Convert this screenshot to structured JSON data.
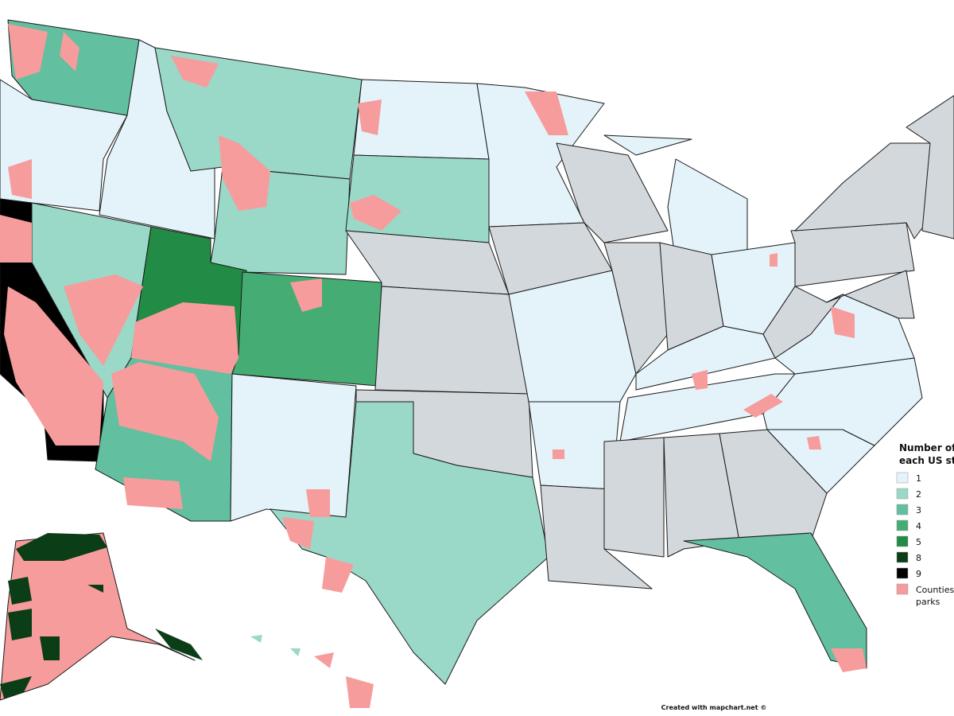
{
  "legend": {
    "title_lines": [
      "Number of",
      "each US st"
    ],
    "items": [
      {
        "lines": [
          "1"
        ],
        "color": "#e3f3f9"
      },
      {
        "lines": [
          "2"
        ],
        "color": "#9ad8c8"
      },
      {
        "lines": [
          "3"
        ],
        "color": "#62bf9f"
      },
      {
        "lines": [
          "4"
        ],
        "color": "#45ad74"
      },
      {
        "lines": [
          "5"
        ],
        "color": "#228b45"
      },
      {
        "lines": [
          "8"
        ],
        "color": "#0b3d17"
      },
      {
        "lines": [
          "9"
        ],
        "color": "#000000"
      },
      {
        "lines": [
          "Counties",
          "parks"
        ],
        "color": "#f79c9c"
      }
    ]
  },
  "footer": "Created with mapchart.net ©"
}
